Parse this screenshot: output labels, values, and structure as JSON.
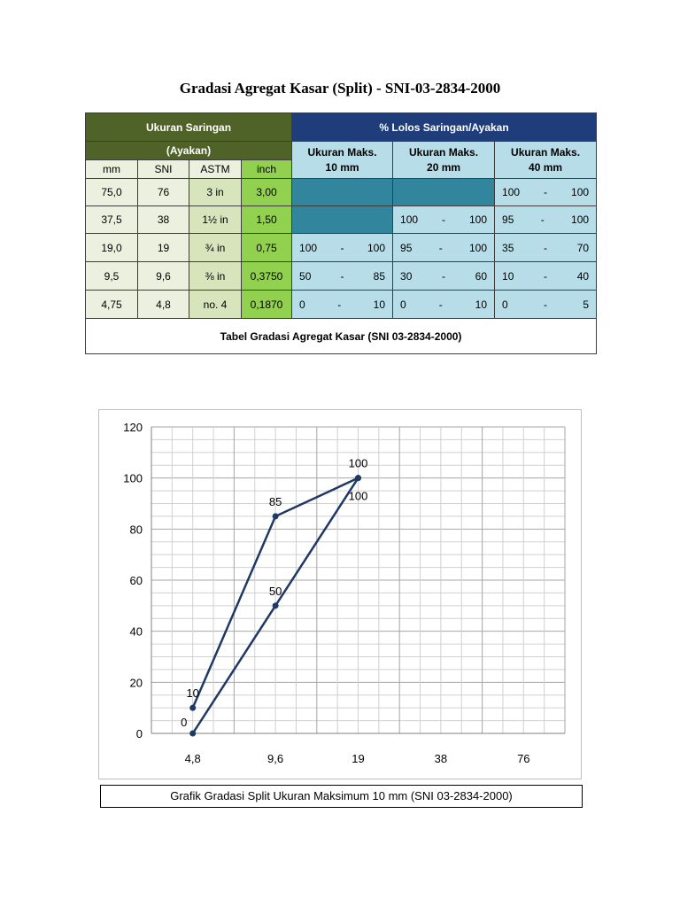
{
  "document": {
    "title": "Gradasi Agregat Kasar (Split) - SNI-03-2834-2000"
  },
  "table": {
    "header_left": "Ukuran Saringan",
    "header_left_sub": "(Ayakan)",
    "header_right": "% Lolos Saringan/Ayakan",
    "groups": [
      {
        "line1": "Ukuran Maks.",
        "line2": "10 mm"
      },
      {
        "line1": "Ukuran Maks.",
        "line2": "20 mm"
      },
      {
        "line1": "Ukuran Maks.",
        "line2": "40 mm"
      }
    ],
    "col_heads": [
      "mm",
      "SNI",
      "ASTM",
      "inch"
    ],
    "rows": [
      {
        "mm": "75,0",
        "sni": "76",
        "astm": "3 in",
        "inch": "3,00",
        "g10": null,
        "g20": null,
        "g40": [
          "100",
          "-",
          "100"
        ]
      },
      {
        "mm": "37,5",
        "sni": "38",
        "astm": "1½ in",
        "inch": "1,50",
        "g10": null,
        "g20": [
          "100",
          "-",
          "100"
        ],
        "g40": [
          "95",
          "-",
          "100"
        ]
      },
      {
        "mm": "19,0",
        "sni": "19",
        "astm": "¾ in",
        "inch": "0,75",
        "g10": [
          "100",
          "-",
          "100"
        ],
        "g20": [
          "95",
          "-",
          "100"
        ],
        "g40": [
          "35",
          "-",
          "70"
        ]
      },
      {
        "mm": "9,5",
        "sni": "9,6",
        "astm": "⅜ in",
        "inch": "0,3750",
        "g10": [
          "50",
          "-",
          "85"
        ],
        "g20": [
          "30",
          "-",
          "60"
        ],
        "g40": [
          "10",
          "-",
          "40"
        ]
      },
      {
        "mm": "4,75",
        "sni": "4,8",
        "astm": "no. 4",
        "inch": "0,1870",
        "g10": [
          "0",
          "-",
          "10"
        ],
        "g20": [
          "0",
          "-",
          "10"
        ],
        "g40": [
          "0",
          "-",
          "5"
        ]
      }
    ],
    "caption": "Tabel Gradasi Agregat Kasar (SNI 03-2834-2000)"
  },
  "colors": {
    "header_green": "#4f6228",
    "header_blue": "#1f3d7a",
    "cell_blue": "#b7dde8",
    "cell_blue_dark": "#31859c",
    "inch_green": "#92d050",
    "line_navy": "#1f3864"
  },
  "chart_data": {
    "type": "line",
    "categories": [
      "4,8",
      "9,6",
      "19",
      "38",
      "76"
    ],
    "ylim": [
      0,
      120
    ],
    "yticks": [
      0,
      20,
      40,
      60,
      80,
      100,
      120
    ],
    "grid": true,
    "series": [
      {
        "values": [
          10,
          85,
          100,
          null,
          null
        ],
        "labels": [
          "10",
          "85",
          "100",
          null,
          null
        ]
      },
      {
        "values": [
          0,
          50,
          100,
          null,
          null
        ],
        "labels": [
          "0",
          "50",
          "100",
          null,
          null
        ]
      }
    ],
    "caption": "Grafik Gradasi Split Ukuran Maksimum 10 mm (SNI 03-2834-2000)"
  }
}
